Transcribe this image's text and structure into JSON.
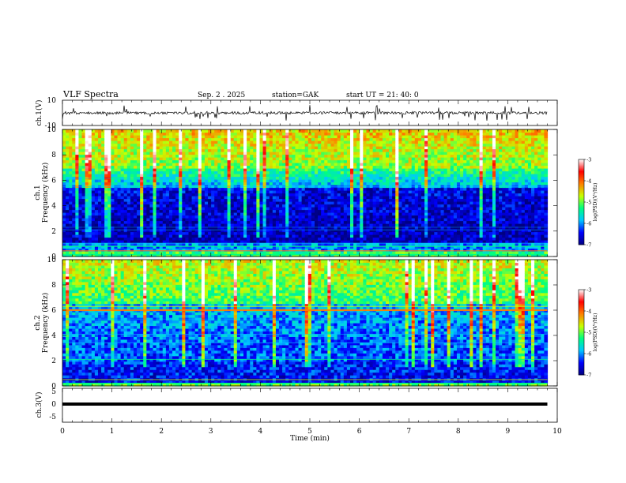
{
  "header": {
    "title": "VLF  Spectra",
    "date": "Sep. 2  . 2025",
    "station": "station=GAK",
    "start_ut": "start  UT  =    21: 40: 0"
  },
  "chart_data": {
    "type": "heatmap",
    "x": {
      "label": "Time  (min)",
      "range": [
        0,
        10
      ],
      "ticks": [
        "0",
        "1",
        "2",
        "3",
        "4",
        "5",
        "6",
        "7",
        "8",
        "9",
        "10"
      ]
    },
    "data_end_min": 9.8,
    "panels": [
      {
        "id": "ch1-waveform",
        "type": "line",
        "ylabel": "ch.1(V)",
        "yrange": [
          -10,
          10
        ],
        "yticks": [
          "10",
          "-10"
        ]
      },
      {
        "id": "ch1-spectrogram",
        "type": "heatmap",
        "ylabel": "ch.1\nFrequency  (kHz)",
        "yrange": [
          0,
          10
        ],
        "yticks": [
          "0",
          "2",
          "4",
          "6",
          "8",
          "10"
        ]
      },
      {
        "id": "ch2-spectrogram",
        "type": "heatmap",
        "ylabel": "ch.2\nFrequency  (kHz)",
        "yrange": [
          0,
          10
        ],
        "yticks": [
          "0",
          "2",
          "4",
          "6",
          "8",
          "10"
        ]
      },
      {
        "id": "ch3-waveform",
        "type": "line",
        "ylabel": "ch.3(V)",
        "yrange": [
          -5,
          5
        ],
        "yticks": [
          "5",
          "0",
          "-5"
        ]
      }
    ],
    "colorbar": {
      "label": "log(PSD)(V²/Hz)",
      "range": [
        -7,
        -3
      ],
      "ticks": [
        "-3",
        "-4",
        "-5",
        "-6",
        "-7"
      ],
      "colormap": [
        "#000080",
        "#0000ff",
        "#00c8ff",
        "#00ff80",
        "#c8ff00",
        "#ff8000",
        "#ff0000",
        "#ffffff"
      ]
    }
  }
}
